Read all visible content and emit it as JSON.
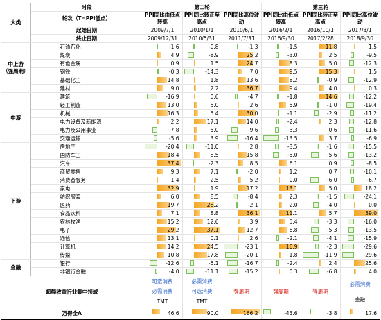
{
  "header": {
    "category_label": "大类",
    "period_label": "时段",
    "round_label": "轮次（T=PPI低点）",
    "start_label": "起始日期",
    "end_label": "终止日期",
    "rounds": [
      "第二轮",
      "第三轮"
    ],
    "periods": [
      {
        "name": "PPI同比由低点转高",
        "start": "2009/7/1",
        "end": "2009/12/31"
      },
      {
        "name": "PPI同比转正至高点",
        "start": "2010/1/1",
        "end": "2010/5/31"
      },
      {
        "name": "PPI同比高位波动",
        "start": "2010/6/1",
        "end": "2011/7/31"
      },
      {
        "name": "PPI同比由低点转高",
        "start": "2016/2/1",
        "end": "2016/9/30"
      },
      {
        "name": "PPI同比转正至高点",
        "start": "2016/10/1",
        "end": "2017/2/28"
      },
      {
        "name": "PPI同比高位波动",
        "start": "2017/3/1",
        "end": "2018/9/30"
      }
    ]
  },
  "groups": [
    {
      "name": [
        "中上游",
        "（强周期）"
      ],
      "rows": [
        {
          "name": "石油石化",
          "values": [
            "-1.6",
            "-0.8",
            "-1.3",
            "-1.5",
            "11.8",
            "1.5"
          ]
        },
        {
          "name": "煤炭",
          "values": [
            "4.9",
            "-8.9",
            "25.2",
            "-3.0",
            "2.5",
            "-9.5"
          ]
        },
        {
          "name": "有色金属",
          "values": [
            "0.9",
            "1.5",
            "24.7",
            "8.3",
            "5.0",
            "-12.3"
          ]
        },
        {
          "name": "钢铁",
          "values": [
            "-0.3",
            "-14.3",
            "7.0",
            "9.5",
            "15.3",
            "1.5"
          ]
        },
        {
          "name": "基础化工",
          "values": [
            "14.8",
            "1.8",
            "13.6",
            "8.2",
            "-0.9",
            "-12.9"
          ]
        },
        {
          "name": "建材",
          "values": [
            "9.0",
            "2.2",
            "36.7",
            "9.4",
            "4.0",
            "0.3"
          ]
        }
      ]
    },
    {
      "name": [
        "中游"
      ],
      "rows": [
        {
          "name": "建筑",
          "values": [
            "-16.9",
            "0.6",
            "-4.7",
            "-1.8",
            "14.6",
            "-12.2"
          ]
        },
        {
          "name": "轻工制造",
          "values": [
            "13.0",
            "5.0",
            "2.6",
            "5.9",
            "-1.0",
            "-19.4"
          ]
        },
        {
          "name": "机械",
          "values": [
            "16.3",
            "5.4",
            "30.0",
            "-1.1",
            "-2.9",
            "-11.2"
          ]
        },
        {
          "name": "电力设备及新能源",
          "values": [
            "2.2",
            "17.1",
            "14.0",
            "-2.4",
            "2.3",
            "-12.8"
          ]
        },
        {
          "name": "电力及公用事业",
          "values": [
            "-7.8",
            "5.0",
            "-9.6",
            "-3.3",
            "0.6",
            "-11.6"
          ]
        },
        {
          "name": "交通运输",
          "values": [
            "-5.6",
            "3.9",
            "-16.4",
            "-13.5",
            "3.7",
            "-6.9"
          ]
        }
      ]
    },
    {
      "name": [
        "下游"
      ],
      "rows": [
        {
          "name": "房地产",
          "values": [
            "-20.4",
            "-11.0",
            "2.8",
            "-3.5",
            "-1.6",
            "-15.5"
          ]
        },
        {
          "name": "国防军工",
          "values": [
            "18.4",
            "8.5",
            "15.8",
            "-5.0",
            "-5.6",
            "-13.2"
          ]
        },
        {
          "name": "汽车",
          "values": [
            "37.4",
            "-2.3",
            "8.5",
            "6.1",
            "0.9",
            "-8.5"
          ]
        },
        {
          "name": "商贸零售",
          "values": [
            "9.3",
            "7.1",
            "-2.0",
            "1.2",
            "0.7",
            "-10.1"
          ]
        },
        {
          "name": "消费者服务",
          "values": [
            "1.4",
            "2.5",
            "5.2",
            "0.0",
            "-6.0",
            "-6.7"
          ]
        },
        {
          "name": "家电",
          "values": [
            "32.9",
            "1.9",
            "17.2",
            "13.1",
            "5.0",
            "18.2"
          ]
        },
        {
          "name": "纺织服装",
          "values": [
            "6.0",
            "8.5",
            "-8.4",
            "2.3",
            "-1.5",
            "-24.1"
          ]
        },
        {
          "name": "医药",
          "values": [
            "19.7",
            "28.2",
            "-2.1",
            "2.0",
            "-4.0",
            "0.0"
          ]
        },
        {
          "name": "食品饮料",
          "values": [
            "7.1",
            "8.8",
            "36.1",
            "11.1",
            "5.7",
            "59.0"
          ]
        },
        {
          "name": "农林牧渔",
          "values": [
            "15.2",
            "12.6",
            "3.9",
            "5.4",
            "-3.3",
            "-16.0"
          ]
        },
        {
          "name": "电子",
          "values": [
            "29.2",
            "37.1",
            "12.7",
            "6.8",
            "-5.3",
            "-13.5"
          ]
        },
        {
          "name": "通信",
          "values": [
            "13.1",
            "0.1",
            "2.6",
            "-2.1",
            "-4.1",
            "-15.9"
          ]
        },
        {
          "name": "计算机",
          "values": [
            "14.2",
            "24.5",
            "-23.1",
            "16.9",
            "-2.3",
            "-29.6"
          ]
        },
        {
          "name": "传媒",
          "values": [
            "10.8",
            "17.8",
            "-20.1",
            "1.8",
            "-11.9",
            "-29.6"
          ]
        }
      ]
    },
    {
      "name": [
        "金融"
      ],
      "rows": [
        {
          "name": "银行",
          "values": [
            "-12.6",
            "-5.1",
            "-16.7",
            "-2.4",
            "2.4",
            "25.6"
          ]
        },
        {
          "name": "非银行金融",
          "values": [
            "-4.0",
            "-11.1",
            "-15.2",
            "0.3",
            "-6.8",
            "4.0"
          ]
        }
      ]
    }
  ],
  "focus": {
    "label": "超额收益行业集中领域",
    "cells": [
      [
        {
          "text": "可选消费",
          "color": "#3a6fc9"
        },
        {
          "text": "必需消费",
          "color": "#3a6fc9"
        },
        {
          "text": "TMT",
          "color": "#000000"
        }
      ],
      [
        {
          "text": "必需消费",
          "color": "#3a6fc9"
        },
        {
          "text": "可选消费",
          "color": "#3a6fc9"
        },
        {
          "text": "TMT",
          "color": "#000000"
        }
      ],
      [
        {
          "text": "强周期",
          "color": "#d9261c"
        }
      ],
      [
        {
          "text": "强周期",
          "color": "#d9261c"
        }
      ],
      [
        {
          "text": "强周期",
          "color": "#d9261c"
        }
      ],
      [
        {
          "text": "必需消费",
          "color": "#3a6fc9"
        },
        {
          "text": "金融",
          "color": "#000000"
        }
      ]
    ]
  },
  "total": {
    "name": "万得全A",
    "values": [
      "46.6",
      "90.0",
      "166.2",
      "-43.6",
      "-3.8",
      "17.6"
    ]
  }
}
